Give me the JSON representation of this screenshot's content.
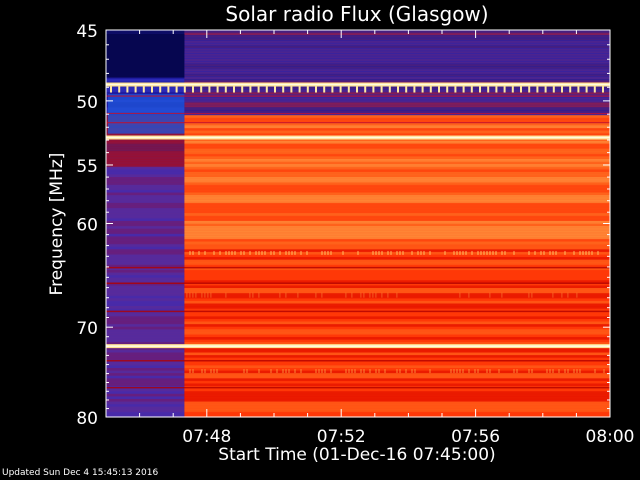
{
  "chart_data": {
    "type": "heatmap",
    "title": "Solar radio Flux (Glasgow)",
    "xlabel": "Start Time (01-Dec-16 07:45:00)",
    "ylabel": "Frequency [MHz]",
    "x_range": [
      "07:45",
      "08:00"
    ],
    "x_ticks": [
      "07:48",
      "07:52",
      "07:56",
      "08:00"
    ],
    "y_range": [
      45,
      80
    ],
    "y_ticks": [
      "45",
      "50",
      "55",
      "60",
      "70",
      "80"
    ],
    "y_ticks_values": [
      45,
      50,
      55,
      60,
      70,
      80
    ],
    "x_ticks_minutes": [
      3,
      7,
      11,
      15
    ],
    "y_log_scale": true,
    "grid": false,
    "colormap": [
      "#1a1470",
      "#3b2fb0",
      "#b00000",
      "#ff2000",
      "#ff7a20",
      "#ffd080",
      "#fff4c0"
    ],
    "onset_time": "07:47:20",
    "bright_bands_mhz": [
      48.8,
      52.8,
      72.0
    ],
    "before_onset": "blue/purple",
    "after_onset": "red/orange"
  },
  "footer": {
    "updated": "Updated Sun Dec  4 15:45:13 2016"
  },
  "colors": {
    "background": "#000000",
    "text": "#ffffff"
  }
}
